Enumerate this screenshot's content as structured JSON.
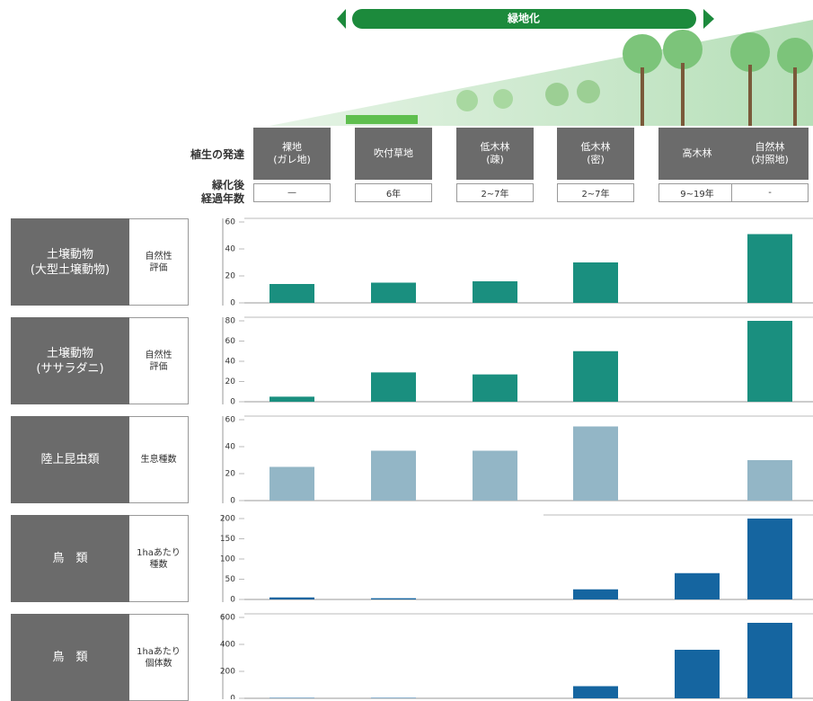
{
  "banner": "緑地化",
  "header": {
    "stage_label": "植生の発達",
    "years_label": "緑化後\n経過年数"
  },
  "stages": [
    {
      "label": "裸地\n(ガレ地)",
      "years": "—"
    },
    {
      "label": "吹付草地",
      "years": "6年"
    },
    {
      "label": "低木林\n(疎)",
      "years": "2~7年"
    },
    {
      "label": "低木林\n(密)",
      "years": "2~7年"
    },
    {
      "label": "高木林",
      "years": "9~19年"
    },
    {
      "label": "自然林\n(対照地)",
      "years": "-"
    }
  ],
  "chart_data": [
    {
      "type": "bar",
      "title": "土壌動物\n(大型土壌動物)",
      "metric": "自然性\n評価",
      "color": "#1a8f7f",
      "values": [
        14,
        15,
        16,
        30,
        null,
        51
      ],
      "ylim": [
        0,
        60
      ],
      "yticks": [
        0,
        20,
        40,
        60
      ]
    },
    {
      "type": "bar",
      "title": "土壌動物\n(ササラダニ)",
      "metric": "自然性\n評価",
      "color": "#1a8f7f",
      "values": [
        5,
        29,
        27,
        50,
        null,
        80
      ],
      "ylim": [
        0,
        80
      ],
      "yticks": [
        0,
        20,
        40,
        60,
        80
      ]
    },
    {
      "type": "bar",
      "title": "陸上昆虫類",
      "metric": "生息種数",
      "color": "#93b6c6",
      "values": [
        25,
        37,
        37,
        55,
        null,
        30
      ],
      "ylim": [
        0,
        60
      ],
      "yticks": [
        0,
        20,
        40,
        60
      ]
    },
    {
      "type": "bar",
      "title": "鳥　類",
      "metric": "1haあたり\n種数",
      "color": "#1565a0",
      "values": [
        5,
        3,
        null,
        25,
        65,
        200
      ],
      "ylim": [
        0,
        200
      ],
      "yticks": [
        0,
        50,
        100,
        150,
        200
      ]
    },
    {
      "type": "bar",
      "title": "鳥　類",
      "metric": "1haあたり\n個体数",
      "color": "#1565a0",
      "values": [
        3,
        3,
        null,
        90,
        360,
        560
      ],
      "ylim": [
        0,
        600
      ],
      "yticks": [
        0,
        200,
        400,
        600
      ]
    }
  ]
}
